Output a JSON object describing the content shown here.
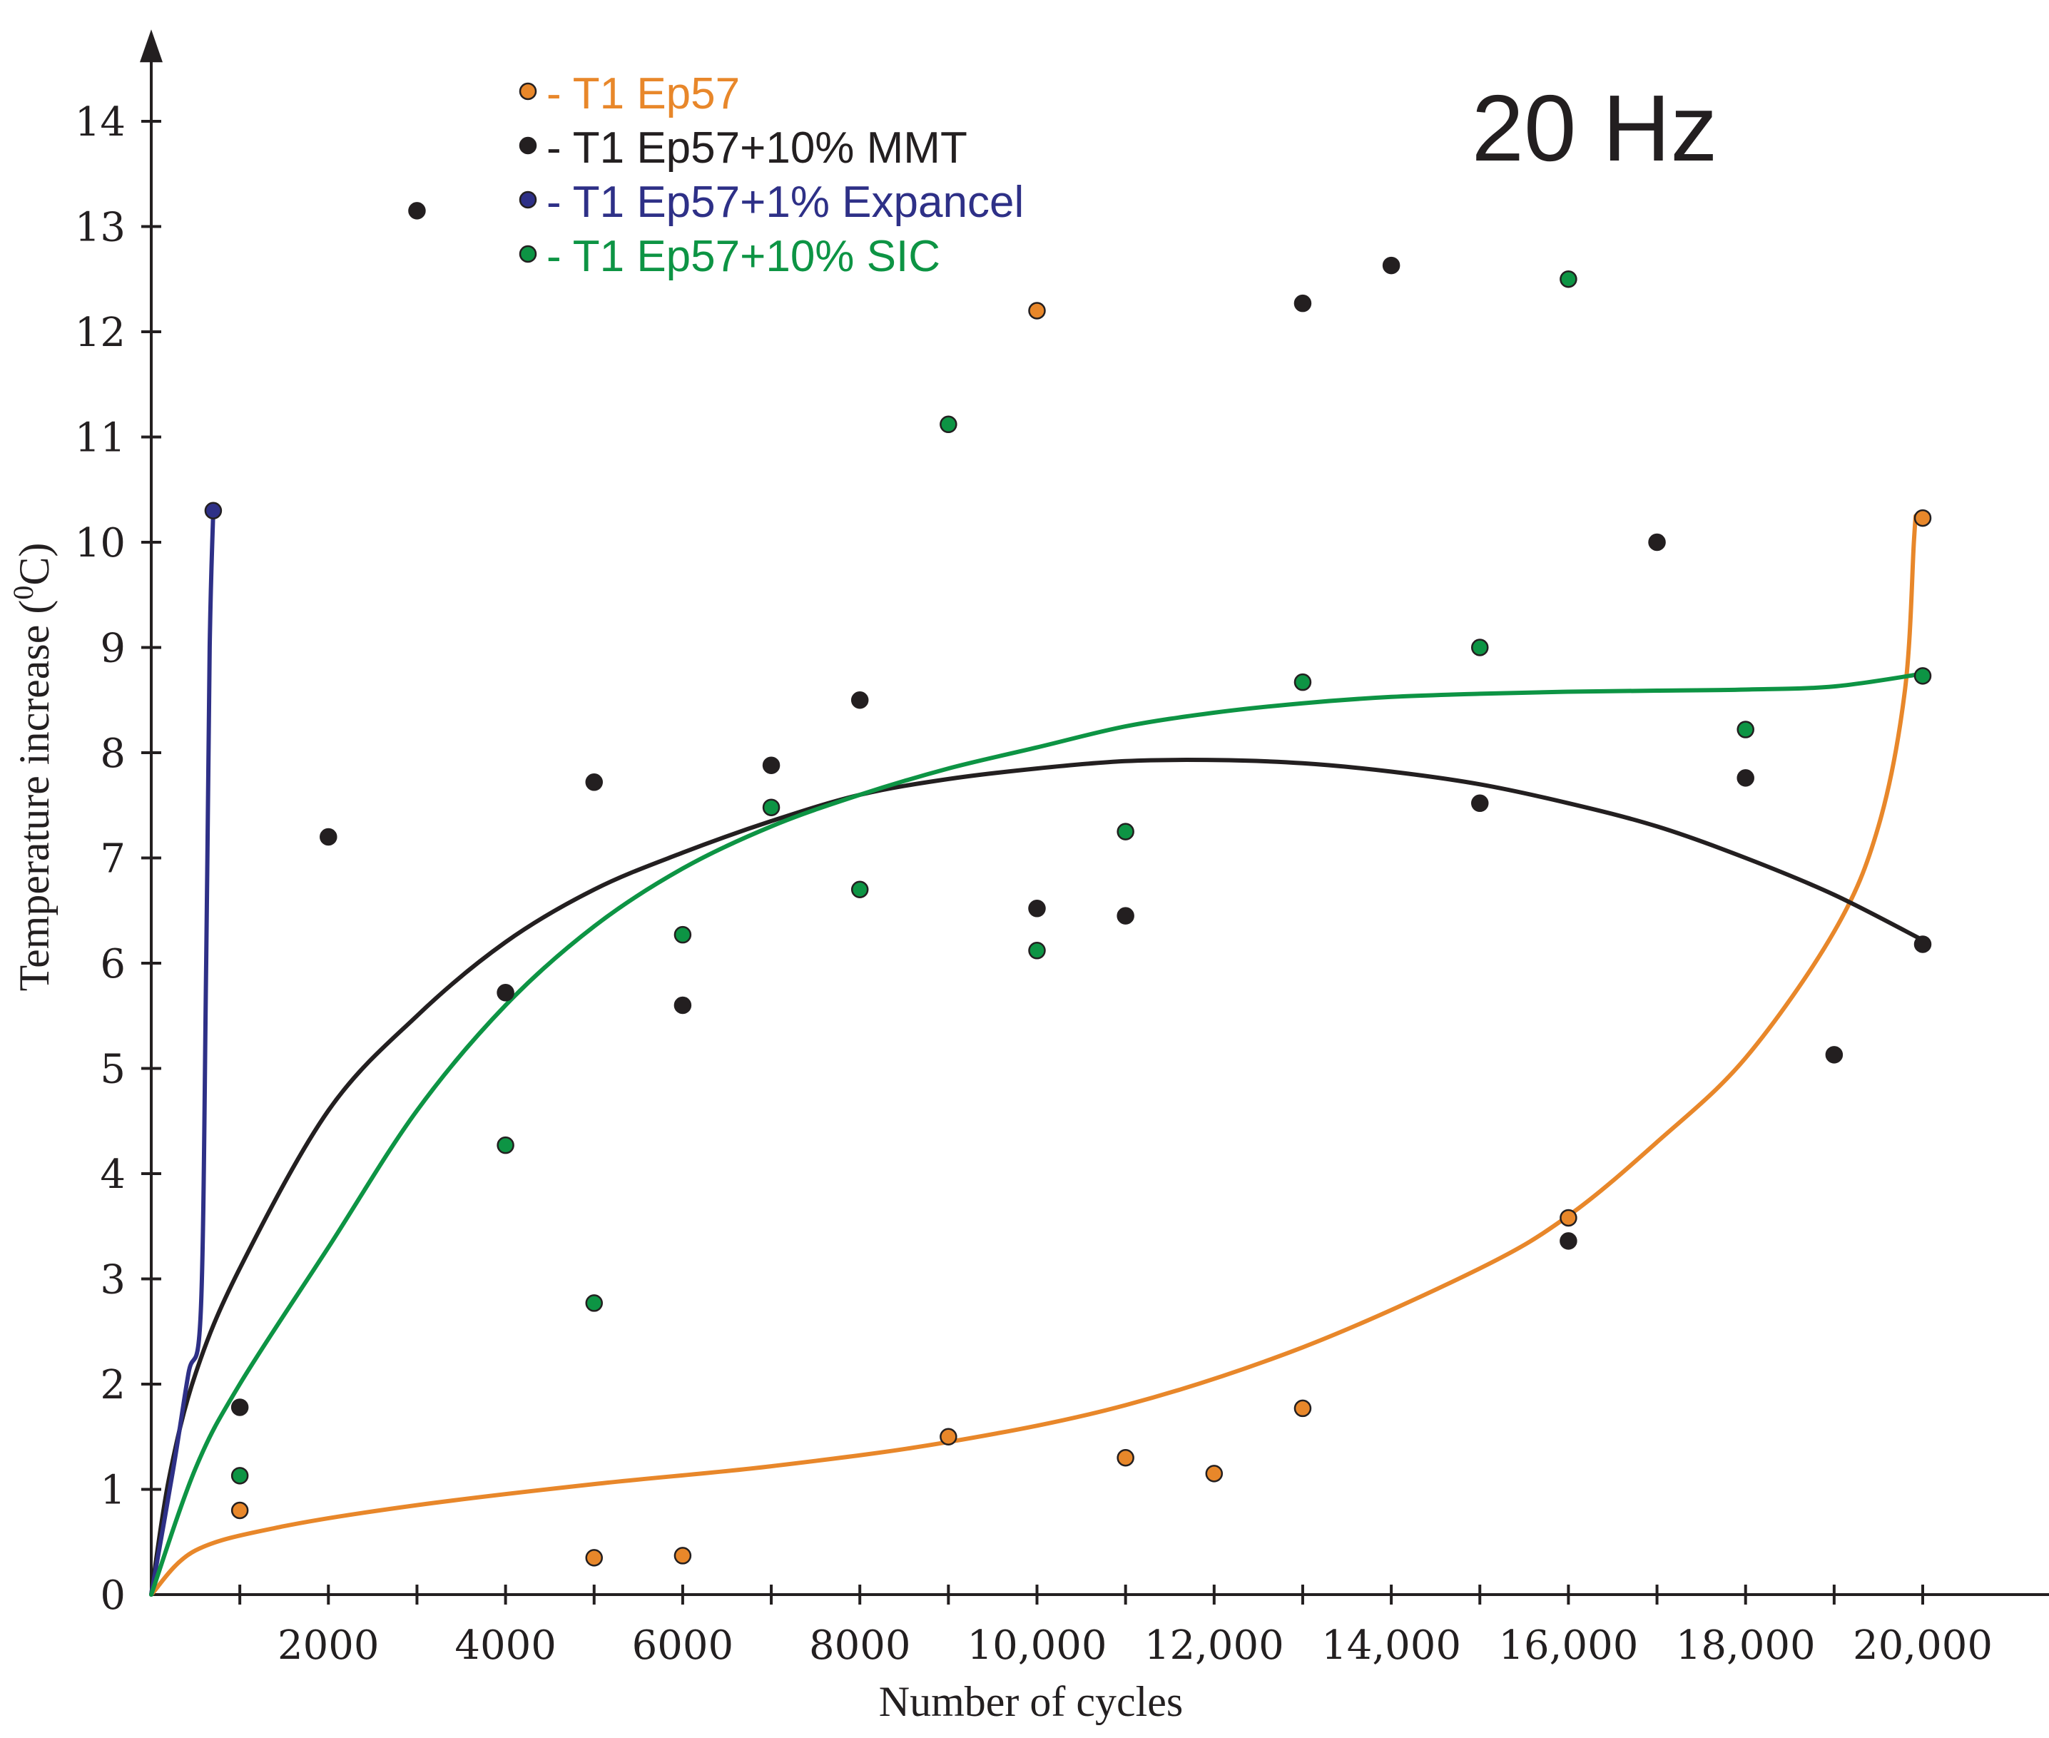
{
  "chart_data": {
    "type": "scatter",
    "title": "20 Hz",
    "xlabel": "Number of cycles",
    "ylabel": "Temperature increase (",
    "ylabel_sup": "0",
    "ylabel_end": "C)",
    "xlim": [
      0,
      21500
    ],
    "ylim": [
      0,
      14.5
    ],
    "x_ticks": [
      1000,
      2000,
      3000,
      4000,
      5000,
      6000,
      7000,
      8000,
      9000,
      10000,
      11000,
      12000,
      13000,
      14000,
      15000,
      16000,
      17000,
      18000,
      19000,
      20000
    ],
    "x_tick_labels": [
      {
        "x": 2000,
        "label": "2000"
      },
      {
        "x": 4000,
        "label": "4000"
      },
      {
        "x": 6000,
        "label": "6000"
      },
      {
        "x": 8000,
        "label": "8000"
      },
      {
        "x": 10000,
        "label": "10,000"
      },
      {
        "x": 12000,
        "label": "12,000"
      },
      {
        "x": 14000,
        "label": "14,000"
      },
      {
        "x": 16000,
        "label": "16,000"
      },
      {
        "x": 18000,
        "label": "18,000"
      },
      {
        "x": 20000,
        "label": "20,000"
      }
    ],
    "y_ticks": [
      {
        "y": 0,
        "label": "0"
      },
      {
        "y": 1,
        "label": "1"
      },
      {
        "y": 2,
        "label": "2"
      },
      {
        "y": 3,
        "label": "3"
      },
      {
        "y": 4,
        "label": "4"
      },
      {
        "y": 5,
        "label": "5"
      },
      {
        "y": 6,
        "label": "6"
      },
      {
        "y": 7,
        "label": "7"
      },
      {
        "y": 8,
        "label": "8"
      },
      {
        "y": 9,
        "label": "9"
      },
      {
        "y": 10,
        "label": "10"
      },
      {
        "y": 11,
        "label": "11"
      },
      {
        "y": 12,
        "label": "12"
      },
      {
        "y": 13,
        "label": "13"
      },
      {
        "y": 14,
        "label": "14"
      }
    ],
    "series": [
      {
        "name": "- T1 Ep57",
        "color": "#e8872a",
        "points": [
          {
            "x": 1000,
            "y": 0.8
          },
          {
            "x": 5000,
            "y": 0.35
          },
          {
            "x": 6000,
            "y": 0.37
          },
          {
            "x": 9000,
            "y": 1.5
          },
          {
            "x": 10000,
            "y": 12.2
          },
          {
            "x": 11000,
            "y": 1.3
          },
          {
            "x": 12000,
            "y": 1.15
          },
          {
            "x": 13000,
            "y": 1.77
          },
          {
            "x": 16000,
            "y": 3.58
          },
          {
            "x": 20000,
            "y": 10.23
          }
        ],
        "trend": [
          {
            "x": 0,
            "y": 0
          },
          {
            "x": 500,
            "y": 0.42
          },
          {
            "x": 1500,
            "y": 0.65
          },
          {
            "x": 3000,
            "y": 0.85
          },
          {
            "x": 5000,
            "y": 1.05
          },
          {
            "x": 7000,
            "y": 1.22
          },
          {
            "x": 9000,
            "y": 1.45
          },
          {
            "x": 11000,
            "y": 1.8
          },
          {
            "x": 13000,
            "y": 2.35
          },
          {
            "x": 15000,
            "y": 3.1
          },
          {
            "x": 16000,
            "y": 3.6
          },
          {
            "x": 17000,
            "y": 4.3
          },
          {
            "x": 18000,
            "y": 5.1
          },
          {
            "x": 19000,
            "y": 6.3
          },
          {
            "x": 19500,
            "y": 7.3
          },
          {
            "x": 19800,
            "y": 8.6
          },
          {
            "x": 19900,
            "y": 10.0
          },
          {
            "x": 19920,
            "y": 10.25
          }
        ]
      },
      {
        "name": "- T1 Ep57+10% MMT",
        "color": "#231f20",
        "points": [
          {
            "x": 1000,
            "y": 1.78
          },
          {
            "x": 2000,
            "y": 7.2
          },
          {
            "x": 3000,
            "y": 13.15
          },
          {
            "x": 4000,
            "y": 5.72
          },
          {
            "x": 5000,
            "y": 7.72
          },
          {
            "x": 6000,
            "y": 5.6
          },
          {
            "x": 7000,
            "y": 7.88
          },
          {
            "x": 8000,
            "y": 8.5
          },
          {
            "x": 10000,
            "y": 6.52
          },
          {
            "x": 11000,
            "y": 6.45
          },
          {
            "x": 13000,
            "y": 12.27
          },
          {
            "x": 14000,
            "y": 12.63
          },
          {
            "x": 15000,
            "y": 7.52
          },
          {
            "x": 16000,
            "y": 3.36
          },
          {
            "x": 17000,
            "y": 10.0
          },
          {
            "x": 18000,
            "y": 7.76
          },
          {
            "x": 19000,
            "y": 5.13
          },
          {
            "x": 20000,
            "y": 6.18
          }
        ],
        "trend": [
          {
            "x": 0,
            "y": 0
          },
          {
            "x": 200,
            "y": 1.1
          },
          {
            "x": 500,
            "y": 2.1
          },
          {
            "x": 1000,
            "y": 3.1
          },
          {
            "x": 2000,
            "y": 4.6
          },
          {
            "x": 3000,
            "y": 5.5
          },
          {
            "x": 4000,
            "y": 6.2
          },
          {
            "x": 5000,
            "y": 6.7
          },
          {
            "x": 6000,
            "y": 7.05
          },
          {
            "x": 7000,
            "y": 7.35
          },
          {
            "x": 8000,
            "y": 7.6
          },
          {
            "x": 9000,
            "y": 7.75
          },
          {
            "x": 10000,
            "y": 7.85
          },
          {
            "x": 11000,
            "y": 7.92
          },
          {
            "x": 12000,
            "y": 7.93
          },
          {
            "x": 13000,
            "y": 7.9
          },
          {
            "x": 14000,
            "y": 7.82
          },
          {
            "x": 15000,
            "y": 7.7
          },
          {
            "x": 16000,
            "y": 7.52
          },
          {
            "x": 17000,
            "y": 7.3
          },
          {
            "x": 18000,
            "y": 7.0
          },
          {
            "x": 19000,
            "y": 6.65
          },
          {
            "x": 20000,
            "y": 6.22
          }
        ]
      },
      {
        "name": "- T1 Ep57+1% Expancel",
        "color": "#2e3087",
        "points": [
          {
            "x": 700,
            "y": 10.3
          }
        ],
        "trend": [
          {
            "x": 0,
            "y": 0
          },
          {
            "x": 250,
            "y": 1.2
          },
          {
            "x": 420,
            "y": 2.1
          },
          {
            "x": 560,
            "y": 2.7
          },
          {
            "x": 620,
            "y": 6.0
          },
          {
            "x": 660,
            "y": 9.0
          },
          {
            "x": 700,
            "y": 10.3
          }
        ]
      },
      {
        "name": "- T1 Ep57+10% SIC",
        "color": "#0d9444",
        "points": [
          {
            "x": 1000,
            "y": 1.13
          },
          {
            "x": 4000,
            "y": 4.27
          },
          {
            "x": 5000,
            "y": 2.77
          },
          {
            "x": 6000,
            "y": 6.27
          },
          {
            "x": 7000,
            "y": 7.48
          },
          {
            "x": 8000,
            "y": 6.7
          },
          {
            "x": 9000,
            "y": 11.12
          },
          {
            "x": 10000,
            "y": 6.12
          },
          {
            "x": 11000,
            "y": 7.25
          },
          {
            "x": 13000,
            "y": 8.67
          },
          {
            "x": 15000,
            "y": 9.0
          },
          {
            "x": 16000,
            "y": 12.5
          },
          {
            "x": 18000,
            "y": 8.22
          },
          {
            "x": 20000,
            "y": 8.73
          }
        ],
        "trend": [
          {
            "x": 0,
            "y": 0
          },
          {
            "x": 500,
            "y": 1.2
          },
          {
            "x": 1000,
            "y": 2.0
          },
          {
            "x": 2000,
            "y": 3.3
          },
          {
            "x": 3000,
            "y": 4.6
          },
          {
            "x": 4000,
            "y": 5.6
          },
          {
            "x": 5000,
            "y": 6.35
          },
          {
            "x": 6000,
            "y": 6.9
          },
          {
            "x": 7000,
            "y": 7.3
          },
          {
            "x": 8000,
            "y": 7.6
          },
          {
            "x": 9000,
            "y": 7.85
          },
          {
            "x": 10000,
            "y": 8.05
          },
          {
            "x": 11000,
            "y": 8.25
          },
          {
            "x": 12000,
            "y": 8.38
          },
          {
            "x": 13000,
            "y": 8.47
          },
          {
            "x": 14000,
            "y": 8.53
          },
          {
            "x": 15000,
            "y": 8.56
          },
          {
            "x": 16000,
            "y": 8.58
          },
          {
            "x": 17000,
            "y": 8.59
          },
          {
            "x": 18000,
            "y": 8.6
          },
          {
            "x": 19000,
            "y": 8.63
          },
          {
            "x": 20000,
            "y": 8.75
          }
        ]
      }
    ],
    "legend_position": "top-left"
  }
}
